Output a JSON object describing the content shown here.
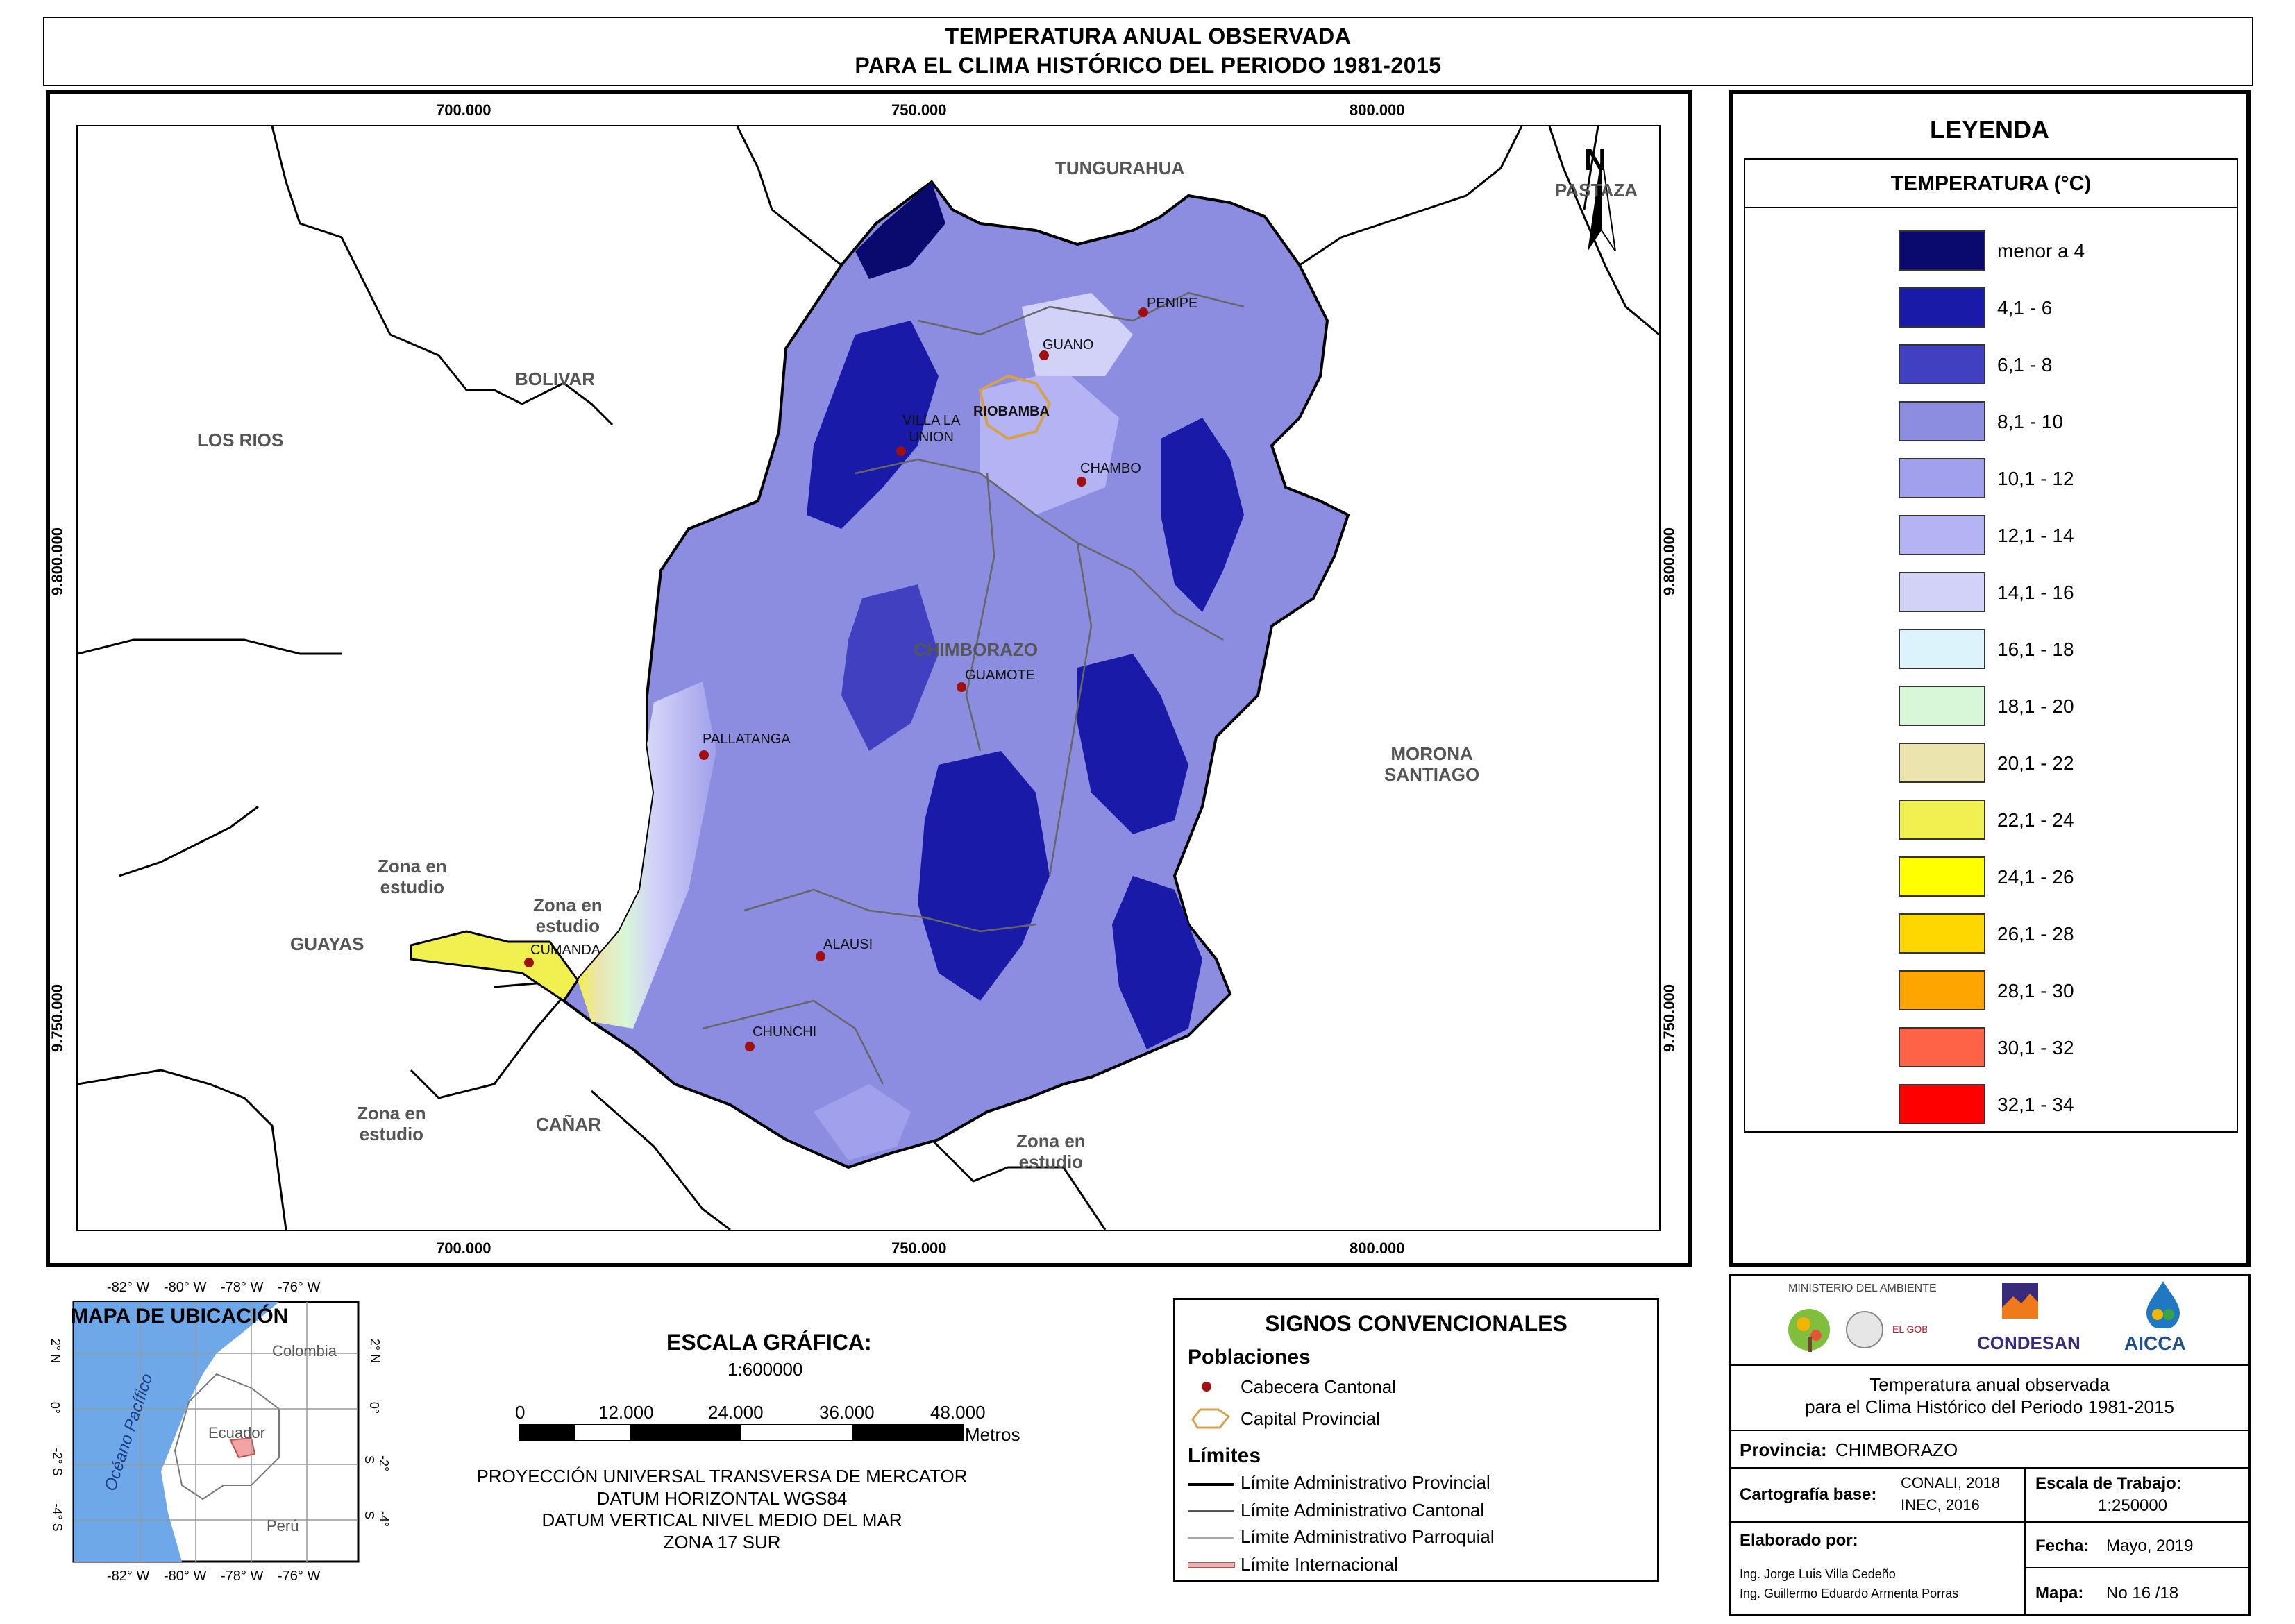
{
  "title": {
    "line1": "TEMPERATURA ANUAL OBSERVADA",
    "line2": "PARA EL CLIMA HISTÓRICO DEL PERIODO 1981-2015"
  },
  "map": {
    "x_ticks": [
      "700.000",
      "750.000",
      "800.000"
    ],
    "y_ticks": [
      "9.800.000",
      "9.750.000"
    ],
    "north": "N",
    "regions": {
      "tungurahua": "TUNGURAHUA",
      "pastaza": "PASTAZA",
      "bolivar": "BOLIVAR",
      "los_rios": "LOS RIOS",
      "chimborazo": "CHIMBORAZO",
      "morona": "MORONA\nSANTIAGO",
      "guayas": "GUAYAS",
      "canar": "CAÑAR",
      "zona1": "Zona en\nestudio",
      "zona2": "Zona en\nestudio",
      "zona3": "Zona en\nestudio",
      "zona4": "Zona en\nestudio"
    },
    "towns": {
      "penipe": "PENIPE",
      "guano": "GUANO",
      "riobamba": "RIOBAMBA",
      "villa": "VILLA LA\nUNION",
      "chambo": "CHAMBO",
      "guamote": "GUAMOTE",
      "pallatanga": "PALLATANGA",
      "cumanda": "CUMANDA",
      "alausi": "ALAUSI",
      "chunchi": "CHUNCHI"
    }
  },
  "legend": {
    "title": "LEYENDA",
    "subtitle": "TEMPERATURA (°C)",
    "classes": [
      {
        "label": "menor a 4",
        "color": "#0a0a6e"
      },
      {
        "label": "4,1 - 6",
        "color": "#1a1aa8"
      },
      {
        "label": "6,1 - 8",
        "color": "#4040c0"
      },
      {
        "label": "8,1 - 10",
        "color": "#8c8ce0"
      },
      {
        "label": "10,1 - 12",
        "color": "#a0a0ec"
      },
      {
        "label": "12,1 - 14",
        "color": "#b4b4f4"
      },
      {
        "label": "14,1 - 16",
        "color": "#d2d2f8"
      },
      {
        "label": "16,1 - 18",
        "color": "#ddf3fb"
      },
      {
        "label": "18,1 - 20",
        "color": "#d8f6d8"
      },
      {
        "label": "20,1 - 22",
        "color": "#ece4ae"
      },
      {
        "label": "22,1 - 24",
        "color": "#f0f050"
      },
      {
        "label": "24,1 - 26",
        "color": "#ffff00"
      },
      {
        "label": "26,1 - 28",
        "color": "#ffd700"
      },
      {
        "label": "28,1 - 30",
        "color": "#ffa500"
      },
      {
        "label": "30,1 - 32",
        "color": "#ff6347"
      },
      {
        "label": "32,1 - 34",
        "color": "#ff0000"
      }
    ]
  },
  "inset": {
    "title": "MAPA DE UBICACIÓN",
    "top_ticks": [
      "-82° W",
      "-80° W",
      "-78° W",
      "-76° W"
    ],
    "bottom_ticks": [
      "-82° W",
      "-80° W",
      "-78° W",
      "-76° W"
    ],
    "lat_ticks": [
      "2° N",
      "0°",
      "-2° S",
      "-4° S"
    ],
    "labels": {
      "colombia": "Colombia",
      "ecuador": "Ecuador",
      "peru": "Perú",
      "ocean": "Océano Pacífico"
    }
  },
  "scale": {
    "title": "ESCALA GRÁFICA:",
    "ratio": "1:600000",
    "ticks": [
      "0",
      "12.000",
      "24.000",
      "36.000",
      "48.000"
    ],
    "unit": "Metros",
    "proj": [
      "PROYECCIÓN UNIVERSAL TRANSVERSA DE MERCATOR",
      "DATUM HORIZONTAL WGS84",
      "DATUM VERTICAL NIVEL MEDIO DEL MAR",
      "ZONA 17 SUR"
    ]
  },
  "signs": {
    "title": "SIGNOS CONVENCIONALES",
    "poblaciones": "Poblaciones",
    "cabecera": "Cabecera Cantonal",
    "capital": "Capital Provincial",
    "limites": "Límites",
    "provincial": "Límite Administrativo Provincial",
    "cantonal": "Límite Administrativo Cantonal",
    "parroquial": "Límite Administrativo Parroquial",
    "internacional": "Límite Internacional"
  },
  "titleblock": {
    "ministerio": "MINISTERIO DEL AMBIENTE",
    "condesan": "CONDESAN",
    "aicca": "AICCA",
    "desc1": "Temperatura anual observada",
    "desc2": "para el Clima Histórico del Periodo 1981-2015",
    "prov_label": "Provincia:",
    "prov_value": "CHIMBORAZO",
    "carto_label": "Cartografía base:",
    "carto_value1": "CONALI, 2018",
    "carto_value2": "INEC, 2016",
    "escala_label": "Escala de Trabajo:",
    "escala_value": "1:250000",
    "elab_label": "Elaborado por:",
    "elab1": "Ing. Jorge Luis Villa Cedeño",
    "elab2": "Ing. Guillermo Eduardo Armenta Porras",
    "fecha_label": "Fecha:",
    "fecha_value": "Mayo, 2019",
    "mapa_label": "Mapa:",
    "mapa_value": "No 16 /18"
  }
}
